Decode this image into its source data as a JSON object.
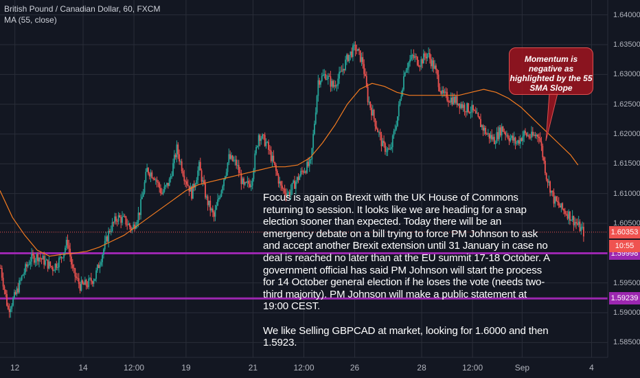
{
  "header": {
    "symbol": "British Pound / Canadian Dollar, 60, FXCM",
    "indicator": "MA (55, close)"
  },
  "colors": {
    "background": "#131722",
    "up": "#26a69a",
    "down": "#ef5350",
    "ma": "#f57c20",
    "levels": "#9c27b0",
    "grid": "#2a2e39"
  },
  "chart_data": {
    "type": "candlestick",
    "series": [
      {
        "name": "GBPCAD",
        "points": [
          [
            0,
            1.5975
          ],
          [
            6,
            1.5905
          ],
          [
            12,
            1.593
          ],
          [
            18,
            1.5965
          ],
          [
            24,
            1.599
          ],
          [
            30,
            1.5995
          ],
          [
            36,
            1.5985
          ],
          [
            42,
            1.5975
          ],
          [
            48,
            1.599
          ],
          [
            54,
            1.602
          ],
          [
            58,
            1.597
          ],
          [
            64,
            1.5945
          ],
          [
            70,
            1.5948
          ],
          [
            76,
            1.596
          ],
          [
            82,
            1.6
          ],
          [
            88,
            1.604
          ],
          [
            94,
            1.606
          ],
          [
            100,
            1.6055
          ],
          [
            106,
            1.604
          ],
          [
            112,
            1.607
          ],
          [
            118,
            1.614
          ],
          [
            124,
            1.613
          ],
          [
            130,
            1.61
          ],
          [
            136,
            1.612
          ],
          [
            142,
            1.6175
          ],
          [
            148,
            1.613
          ],
          [
            154,
            1.61
          ],
          [
            160,
            1.6145
          ],
          [
            166,
            1.609
          ],
          [
            172,
            1.606
          ],
          [
            178,
            1.611
          ],
          [
            184,
            1.616
          ],
          [
            190,
            1.615
          ],
          [
            196,
            1.611
          ],
          [
            202,
            1.612
          ],
          [
            208,
            1.62
          ],
          [
            214,
            1.6185
          ],
          [
            220,
            1.615
          ],
          [
            226,
            1.611
          ],
          [
            232,
            1.61
          ],
          [
            238,
            1.612
          ],
          [
            244,
            1.614
          ],
          [
            250,
            1.615
          ],
          [
            256,
            1.629
          ],
          [
            262,
            1.63
          ],
          [
            268,
            1.628
          ],
          [
            274,
            1.63
          ],
          [
            280,
            1.633
          ],
          [
            286,
            1.6345
          ],
          [
            292,
            1.632
          ],
          [
            296,
            1.626
          ],
          [
            302,
            1.622
          ],
          [
            308,
            1.618
          ],
          [
            314,
            1.617
          ],
          [
            320,
            1.623
          ],
          [
            326,
            1.631
          ],
          [
            332,
            1.633
          ],
          [
            338,
            1.632
          ],
          [
            344,
            1.6335
          ],
          [
            350,
            1.631
          ],
          [
            356,
            1.6265
          ],
          [
            362,
            1.626
          ],
          [
            368,
            1.6255
          ],
          [
            374,
            1.6245
          ],
          [
            380,
            1.624
          ],
          [
            386,
            1.622
          ],
          [
            392,
            1.62
          ],
          [
            398,
            1.619
          ],
          [
            404,
            1.621
          ],
          [
            410,
            1.6195
          ],
          [
            416,
            1.6185
          ],
          [
            422,
            1.62
          ],
          [
            428,
            1.6195
          ],
          [
            434,
            1.62
          ],
          [
            440,
            1.613
          ],
          [
            446,
            1.609
          ],
          [
            452,
            1.6075
          ],
          [
            458,
            1.6065
          ],
          [
            464,
            1.605
          ],
          [
            470,
            1.6035
          ]
        ]
      },
      {
        "name": "MA (55, close)",
        "points": [
          [
            0,
            1.6105
          ],
          [
            10,
            1.606
          ],
          [
            20,
            1.603
          ],
          [
            30,
            1.6005
          ],
          [
            40,
            1.5995
          ],
          [
            50,
            1.5998
          ],
          [
            60,
            1.6
          ],
          [
            70,
            1.6003
          ],
          [
            80,
            1.601
          ],
          [
            90,
            1.602
          ],
          [
            100,
            1.603
          ],
          [
            110,
            1.6045
          ],
          [
            120,
            1.606
          ],
          [
            130,
            1.6075
          ],
          [
            140,
            1.609
          ],
          [
            150,
            1.6105
          ],
          [
            160,
            1.6115
          ],
          [
            170,
            1.612
          ],
          [
            180,
            1.6125
          ],
          [
            190,
            1.613
          ],
          [
            200,
            1.6135
          ],
          [
            210,
            1.614
          ],
          [
            220,
            1.6145
          ],
          [
            230,
            1.6145
          ],
          [
            240,
            1.6148
          ],
          [
            250,
            1.616
          ],
          [
            260,
            1.6185
          ],
          [
            270,
            1.6215
          ],
          [
            280,
            1.625
          ],
          [
            290,
            1.6275
          ],
          [
            300,
            1.6285
          ],
          [
            310,
            1.628
          ],
          [
            320,
            1.627
          ],
          [
            330,
            1.6265
          ],
          [
            340,
            1.6265
          ],
          [
            350,
            1.6265
          ],
          [
            360,
            1.6265
          ],
          [
            370,
            1.6265
          ],
          [
            380,
            1.627
          ],
          [
            390,
            1.6275
          ],
          [
            400,
            1.627
          ],
          [
            410,
            1.626
          ],
          [
            420,
            1.6245
          ],
          [
            430,
            1.6225
          ],
          [
            440,
            1.6205
          ],
          [
            450,
            1.6185
          ],
          [
            460,
            1.6165
          ],
          [
            466,
            1.6148
          ]
        ]
      }
    ],
    "ylim": [
      1.5825,
      1.6425
    ],
    "xlim": [
      0,
      490
    ],
    "yticks": [
      "1.64000",
      "1.63500",
      "1.63000",
      "1.62500",
      "1.62000",
      "1.61500",
      "1.61000",
      "1.60500",
      "1.59500",
      "1.59000",
      "1.58500"
    ],
    "ytick_values": [
      1.64,
      1.635,
      1.63,
      1.625,
      1.62,
      1.615,
      1.61,
      1.605,
      1.595,
      1.59,
      1.585
    ],
    "xticks": [
      {
        "label": "12",
        "x": 12
      },
      {
        "label": "14",
        "x": 67
      },
      {
        "label": "12:00",
        "x": 108
      },
      {
        "label": "19",
        "x": 150
      },
      {
        "label": "21",
        "x": 204
      },
      {
        "label": "12:00",
        "x": 245
      },
      {
        "label": "26",
        "x": 286
      },
      {
        "label": "28",
        "x": 340
      },
      {
        "label": "12:00",
        "x": 381
      },
      {
        "label": "Sep",
        "x": 421
      },
      {
        "label": "4",
        "x": 477
      }
    ],
    "levels": [
      {
        "value": 1.59998,
        "label": "1.59998"
      },
      {
        "value": 1.59239,
        "label": "1.59239"
      }
    ],
    "last_price": {
      "value": 1.60353,
      "label": "1.60353",
      "time": "10:55"
    }
  },
  "annotation": {
    "paragraph1": "Focus is again on Brexit with the UK House of Commons returning to session. It looks like we are heading for a snap election sooner than expected. Today there will be an emergency debate on a bill trying to force PM Johnson to ask and accept another Brexit extension until 31 January in case no deal is reached no later than at the EU summit 17-18 October. A government official has said PM Johnson will start the process for 14 October general election if he loses the vote (needs two-third majority). PM Johnson will make a public statement at 19:00 CEST.",
    "paragraph2": "We like Selling GBPCAD at market, looking for 1.6000 and then 1.5923."
  },
  "callout": {
    "text": "Momentum is negative as highlighted by the 55 SMA Slope"
  }
}
